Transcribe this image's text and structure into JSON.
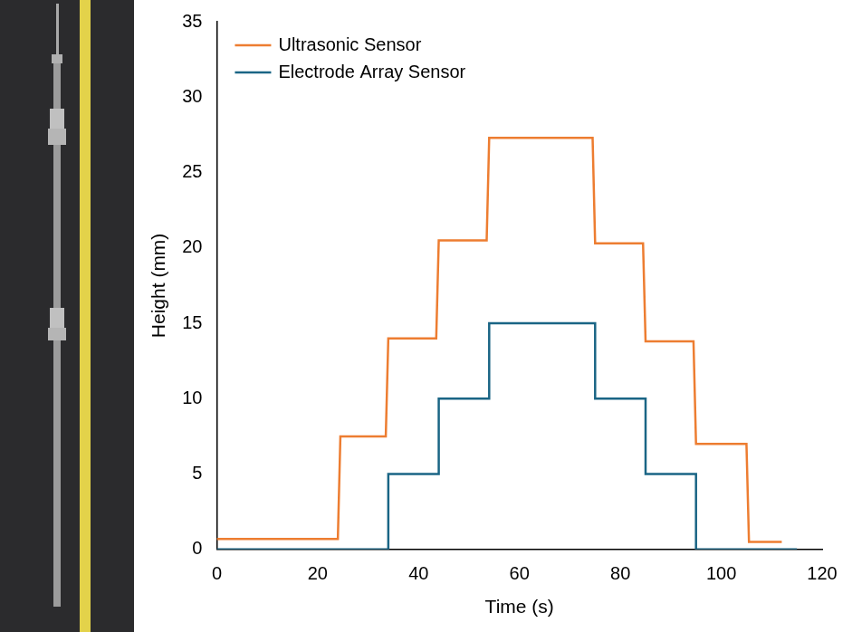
{
  "chart_data": {
    "type": "line",
    "xlabel": "Time (s)",
    "ylabel": "Height (mm)",
    "xlim": [
      0,
      120
    ],
    "xticks": [
      0,
      20,
      40,
      60,
      80,
      100,
      120
    ],
    "ylim": [
      0,
      35
    ],
    "yticks": [
      0,
      5,
      10,
      15,
      20,
      25,
      30,
      35
    ],
    "grid": false,
    "legend": "upper left",
    "series": [
      {
        "name": "Ultrasonic Sensor",
        "color": "#ed7d31",
        "line_style": "solid",
        "x": [
          0,
          24,
          24.5,
          33.5,
          34,
          43.5,
          44,
          53.5,
          54,
          74.5,
          75,
          84.5,
          85,
          94.5,
          95,
          105,
          105.5,
          112
        ],
        "values": [
          0.7,
          0.7,
          7.5,
          7.5,
          14,
          14,
          20.5,
          20.5,
          27.3,
          27.3,
          20.3,
          20.3,
          13.8,
          13.8,
          7,
          7,
          0.5,
          0.5
        ]
      },
      {
        "name": "Electrode Array Sensor",
        "color": "#1a6585",
        "line_style": "solid",
        "x": [
          0,
          34,
          34,
          44,
          44,
          54,
          54,
          75,
          75,
          85,
          85,
          95,
          95,
          115
        ],
        "values": [
          0,
          0,
          5,
          5,
          10,
          10,
          15,
          15,
          10,
          10,
          5,
          5,
          0,
          0
        ]
      }
    ]
  }
}
